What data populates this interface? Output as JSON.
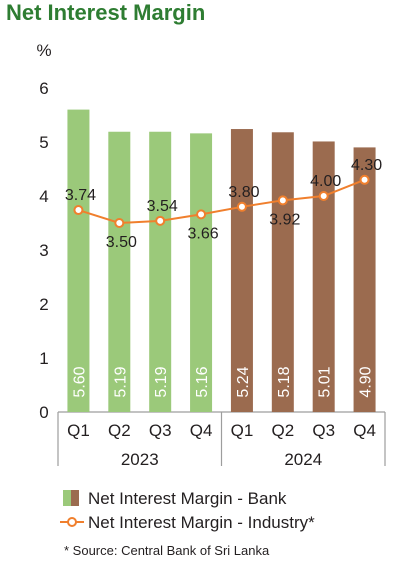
{
  "chart_data": {
    "type": "bar",
    "title": "Net Interest Margin",
    "ylabel": "%",
    "ylim": [
      0,
      6
    ],
    "yticks": [
      0,
      1,
      2,
      3,
      4,
      5,
      6
    ],
    "categories": [
      "Q1",
      "Q2",
      "Q3",
      "Q4",
      "Q1",
      "Q2",
      "Q3",
      "Q4"
    ],
    "groups": [
      {
        "label": "2023",
        "span": 4
      },
      {
        "label": "2024",
        "span": 4
      }
    ],
    "bar_colors": [
      "#9bc97a",
      "#9bc97a",
      "#9bc97a",
      "#9bc97a",
      "#9b6b4f",
      "#9b6b4f",
      "#9b6b4f",
      "#9b6b4f"
    ],
    "series": [
      {
        "name": "Net Interest Margin - Bank",
        "kind": "bar",
        "values": [
          5.6,
          5.19,
          5.19,
          5.16,
          5.24,
          5.18,
          5.01,
          4.9
        ],
        "labels": [
          "5.60",
          "5.19",
          "5.19",
          "5.16",
          "5.24",
          "5.18",
          "5.01",
          "4.90"
        ]
      },
      {
        "name": "Net Interest Margin - Industry*",
        "kind": "line",
        "color": "#f07f2d",
        "values": [
          3.74,
          3.5,
          3.54,
          3.66,
          3.8,
          3.92,
          4.0,
          4.3
        ],
        "labels": [
          "3.74",
          "3.50",
          "3.54",
          "3.66",
          "3.80",
          "3.92",
          "4.00",
          "4.30"
        ]
      }
    ],
    "source": "* Source: Central Bank of Sri Lanka",
    "grid": false,
    "legend_position": "bottom"
  }
}
